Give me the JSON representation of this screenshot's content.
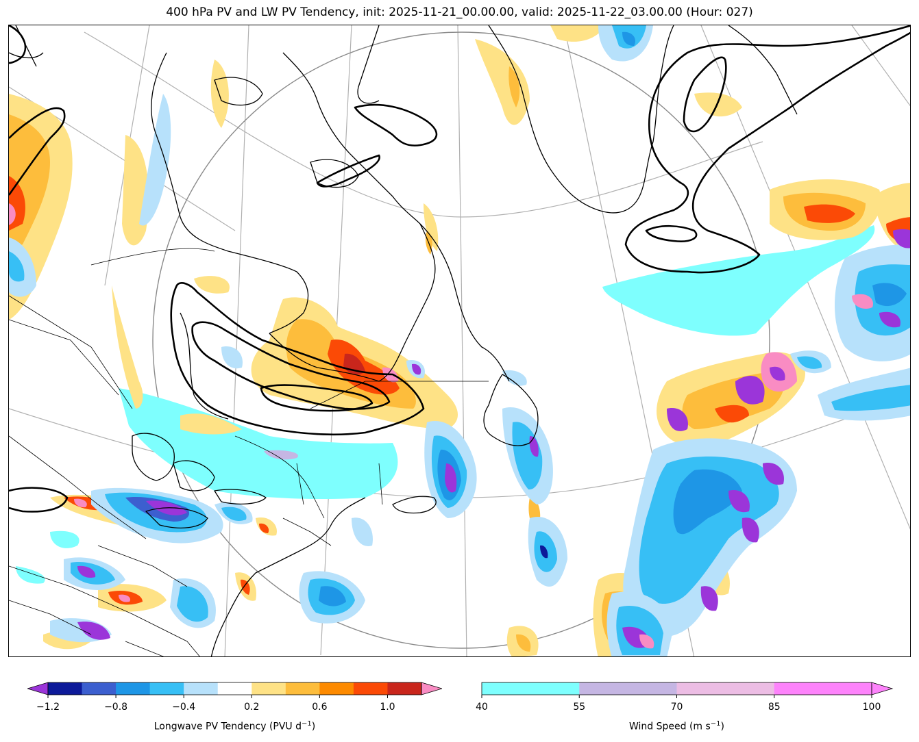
{
  "title": "400 hPa PV and LW PV Tendency, init: 2025-11-21_00.00.00, valid: 2025-11-22_03.00.00 (Hour: 027)",
  "colorbar_pv": {
    "label_prefix": "Longwave PV Tendency (PVU d",
    "label_exp": "−1",
    "label_suffix": ")",
    "ticks": [
      "−1.2",
      "−0.8",
      "−0.4",
      "0.2",
      "0.6",
      "1.0"
    ],
    "min": -1.2,
    "max": 1.2,
    "levels": [
      -1.2,
      -1.0,
      -0.8,
      -0.6,
      -0.4,
      -0.2,
      0.2,
      0.4,
      0.6,
      0.8,
      1.0,
      1.2
    ],
    "colors": [
      "#0d1a99",
      "#3c5fcf",
      "#1e96e6",
      "#37bff5",
      "#b7e1fb",
      "#ffffff",
      "#fee286",
      "#fdbd3c",
      "#fd8a00",
      "#fb4a06",
      "#c9261c"
    ],
    "under_color": "#9b35d9",
    "over_color": "#f98cc3"
  },
  "colorbar_wind": {
    "label_prefix": "Wind Speed (m s",
    "label_exp": "−1",
    "label_suffix": ")",
    "ticks": [
      "40",
      "55",
      "70",
      "85",
      "100"
    ],
    "levels": [
      40,
      55,
      70,
      85,
      100
    ],
    "colors": [
      "#7efffe",
      "#c5b6e3",
      "#ecbde4",
      "#fd83fb"
    ],
    "over_color": "#fd83fb"
  }
}
